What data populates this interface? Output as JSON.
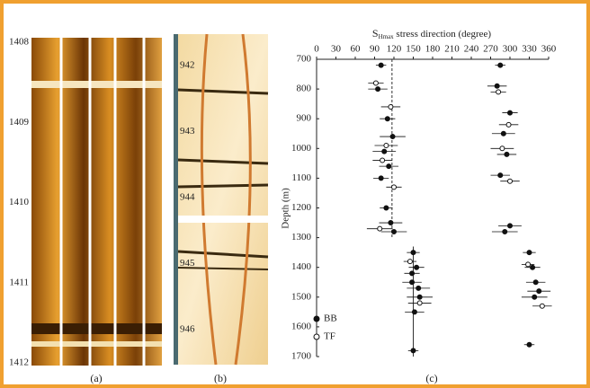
{
  "panel_a": {
    "depth_labels": [
      1408,
      1409,
      1410,
      1411,
      1412
    ],
    "caption": "(a)"
  },
  "panel_b": {
    "depth_labels": [
      942,
      943,
      944,
      945,
      946
    ],
    "caption": "(b)"
  },
  "chart_data": {
    "type": "scatter",
    "title_symbol": "S",
    "title_subscript": "Hmax",
    "title_rest": "stress direction (degree)",
    "y_label": "Depth (m)",
    "caption": "(c)",
    "xlim": [
      0,
      360
    ],
    "xticks": [
      0,
      30,
      60,
      90,
      120,
      150,
      180,
      210,
      240,
      270,
      300,
      330,
      360
    ],
    "ylim": [
      700,
      1700
    ],
    "yticks": [
      700,
      800,
      900,
      1000,
      1100,
      1200,
      1300,
      1400,
      1500,
      1600,
      1700
    ],
    "y_inverted": true,
    "reference_lines": [
      {
        "x": 117,
        "y": [
          700,
          1300
        ]
      },
      {
        "x": 150,
        "y": [
          1330,
          1700
        ]
      }
    ],
    "series": [
      {
        "name": "BB",
        "marker": "filled",
        "color": "#111",
        "x": [
          100,
          95,
          110,
          118,
          105,
          112,
          100,
          115,
          120,
          108,
          150,
          155,
          148,
          160,
          152,
          150,
          148,
          158,
          285,
          280,
          300,
          290,
          295,
          285,
          300,
          292,
          330,
          335,
          340,
          338,
          330,
          345
        ],
        "y": [
          720,
          800,
          900,
          960,
          1010,
          1060,
          1100,
          1250,
          1280,
          1200,
          1350,
          1400,
          1450,
          1500,
          1550,
          1680,
          1420,
          1470,
          720,
          790,
          880,
          950,
          1020,
          1090,
          1260,
          1280,
          1350,
          1400,
          1450,
          1500,
          1660,
          1480
        ],
        "err": [
          8,
          15,
          12,
          20,
          18,
          15,
          12,
          18,
          20,
          10,
          10,
          12,
          15,
          20,
          15,
          8,
          12,
          18,
          8,
          15,
          12,
          18,
          15,
          15,
          18,
          20,
          10,
          12,
          15,
          20,
          8,
          18
        ]
      },
      {
        "name": "TF",
        "marker": "open",
        "color": "#111",
        "x": [
          92,
          115,
          108,
          102,
          120,
          98,
          145,
          160,
          282,
          298,
          288,
          300,
          328,
          350
        ],
        "y": [
          780,
          860,
          990,
          1040,
          1130,
          1270,
          1380,
          1520,
          810,
          920,
          1000,
          1110,
          1390,
          1530
        ],
        "err": [
          12,
          15,
          18,
          15,
          12,
          20,
          10,
          18,
          12,
          15,
          18,
          15,
          10,
          15
        ]
      }
    ]
  }
}
